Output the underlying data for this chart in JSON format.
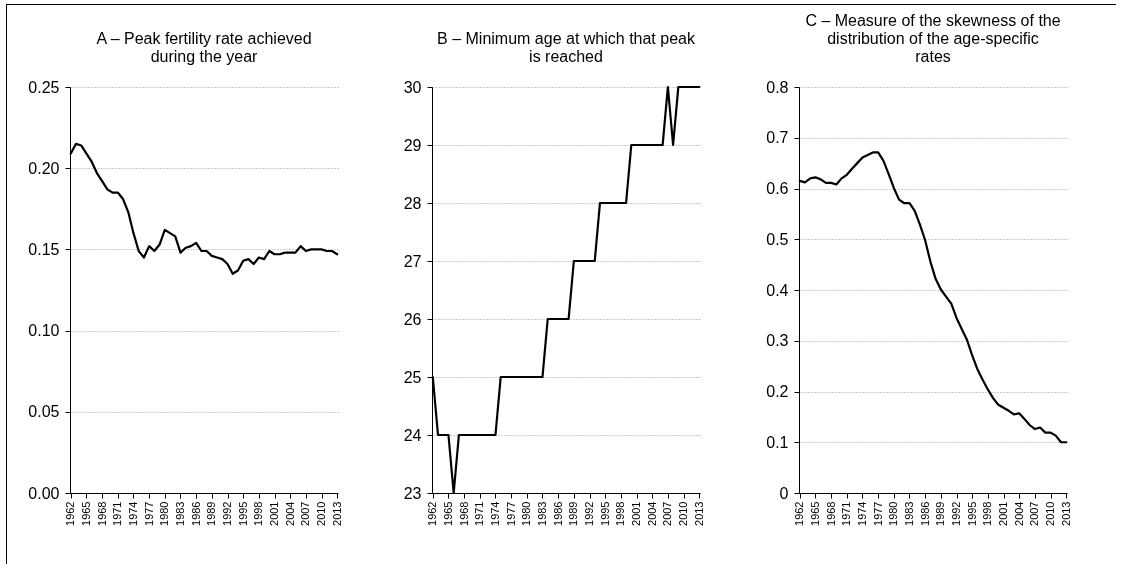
{
  "chart_data": [
    {
      "type": "line",
      "title": "A – Peak fertility rate achieved during the year",
      "categories": [
        "1962",
        null,
        null,
        "1965",
        null,
        null,
        "1968",
        null,
        null,
        "1971",
        null,
        null,
        "1974",
        null,
        null,
        "1977",
        null,
        null,
        "1980",
        null,
        null,
        "1983",
        null,
        null,
        "1986",
        null,
        null,
        "1989",
        null,
        null,
        "1992",
        null,
        null,
        "1995",
        null,
        null,
        "1998",
        null,
        null,
        "2001",
        null,
        null,
        "2004",
        null,
        null,
        "2007",
        null,
        null,
        "2010",
        null,
        null,
        "2013"
      ],
      "values": [
        0.209,
        0.215,
        0.214,
        0.209,
        0.204,
        0.197,
        0.192,
        0.187,
        0.185,
        0.185,
        0.181,
        0.173,
        0.16,
        0.149,
        0.145,
        0.152,
        0.149,
        0.153,
        0.162,
        0.16,
        0.158,
        0.148,
        0.151,
        0.152,
        0.154,
        0.149,
        0.149,
        0.146,
        0.145,
        0.144,
        0.141,
        0.135,
        0.137,
        0.143,
        0.144,
        0.141,
        0.145,
        0.144,
        0.149,
        0.147,
        0.147,
        0.148,
        0.148,
        0.148,
        0.152,
        0.149,
        0.15,
        0.15,
        0.15,
        0.149,
        0.149,
        0.147
      ],
      "color": "#000000",
      "ylim": [
        0,
        0.25
      ],
      "yticks": [
        {
          "value": 0,
          "label": "0.00"
        },
        {
          "value": 0.05,
          "label": "0.05"
        },
        {
          "value": 0.1,
          "label": "0.10"
        },
        {
          "value": 0.15,
          "label": "0.15"
        },
        {
          "value": 0.2,
          "label": "0.20"
        },
        {
          "value": 0.25,
          "label": "0.25"
        }
      ],
      "grid": "y"
    },
    {
      "type": "line",
      "title": "B – Minimum age at which that peak is reached",
      "categories": [
        "1962",
        null,
        null,
        "1965",
        null,
        null,
        "1968",
        null,
        null,
        "1971",
        null,
        null,
        "1974",
        null,
        null,
        "1977",
        null,
        null,
        "1980",
        null,
        null,
        "1983",
        null,
        null,
        "1986",
        null,
        null,
        "1989",
        null,
        null,
        "1992",
        null,
        null,
        "1995",
        null,
        null,
        "1998",
        null,
        null,
        "2001",
        null,
        null,
        "2004",
        null,
        null,
        "2007",
        null,
        null,
        "2010",
        null,
        null,
        "2013"
      ],
      "values": [
        25,
        24,
        24,
        24,
        23,
        24,
        24,
        24,
        24,
        24,
        24,
        24,
        24,
        25,
        25,
        25,
        25,
        25,
        25,
        25,
        25,
        25,
        26,
        26,
        26,
        26,
        26,
        27,
        27,
        27,
        27,
        27,
        28,
        28,
        28,
        28,
        28,
        28,
        29,
        29,
        29,
        29,
        29,
        29,
        29,
        30,
        29,
        30,
        30,
        30,
        30,
        30
      ],
      "color": "#000000",
      "ylim": [
        23,
        30
      ],
      "yticks": [
        23,
        24,
        25,
        26,
        27,
        28,
        29,
        30
      ],
      "grid": "y"
    },
    {
      "type": "line",
      "title": "C – Measure of the skewness of the distribution of the age-specific rates",
      "categories": [
        "1962",
        null,
        null,
        "1965",
        null,
        null,
        "1968",
        null,
        null,
        "1971",
        null,
        null,
        "1974",
        null,
        null,
        "1977",
        null,
        null,
        "1980",
        null,
        null,
        "1983",
        null,
        null,
        "1986",
        null,
        null,
        "1989",
        null,
        null,
        "1992",
        null,
        null,
        "1995",
        null,
        null,
        "1998",
        null,
        null,
        "2001",
        null,
        null,
        "2004",
        null,
        null,
        "2007",
        null,
        null,
        "2010",
        null,
        null,
        "2013"
      ],
      "values": [
        0.615,
        0.612,
        0.62,
        0.622,
        0.618,
        0.611,
        0.611,
        0.608,
        0.62,
        0.627,
        0.639,
        0.65,
        0.661,
        0.666,
        0.671,
        0.671,
        0.655,
        0.629,
        0.601,
        0.578,
        0.571,
        0.571,
        0.556,
        0.529,
        0.498,
        0.456,
        0.422,
        0.401,
        0.387,
        0.373,
        0.345,
        0.323,
        0.302,
        0.271,
        0.244,
        0.223,
        0.204,
        0.187,
        0.174,
        0.168,
        0.162,
        0.155,
        0.157,
        0.146,
        0.134,
        0.126,
        0.129,
        0.119,
        0.119,
        0.113,
        0.1,
        0.1
      ],
      "color": "#000000",
      "ylim": [
        0,
        0.8
      ],
      "yticks": [
        0,
        0.1,
        0.2,
        0.3,
        0.4,
        0.5,
        0.6,
        0.7,
        0.8
      ],
      "grid": "y"
    }
  ]
}
